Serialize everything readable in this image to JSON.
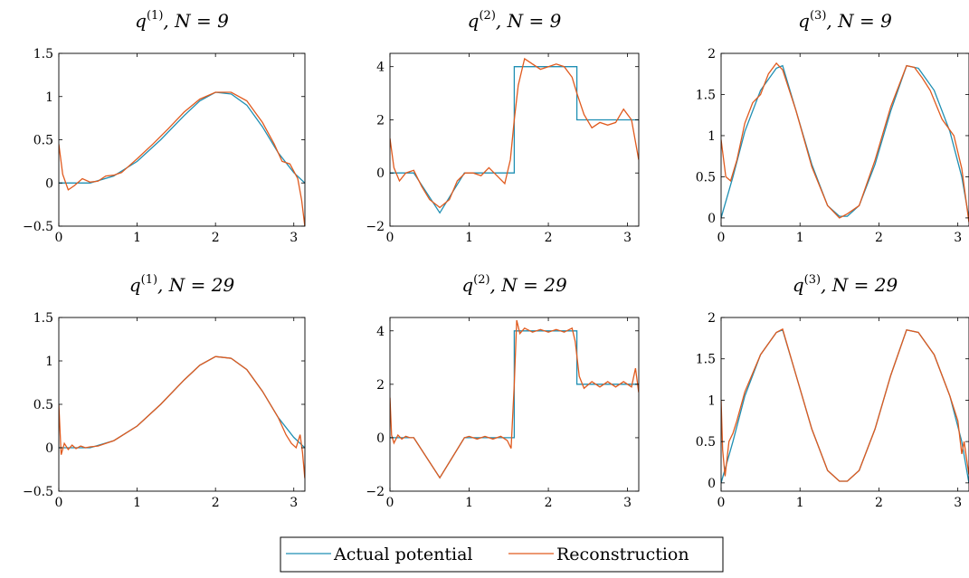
{
  "colors": {
    "actual": "#1f8fb3",
    "reconstruction": "#e05a1e",
    "axis": "#000000"
  },
  "legend": {
    "items": [
      "Actual potential",
      "Reconstruction"
    ]
  },
  "chart_data": [
    {
      "type": "line",
      "title_base": "q",
      "title_sup": "(1)",
      "title_n": "N = 9",
      "xlim": [
        0,
        3.1416
      ],
      "ylim": [
        -0.5,
        1.5
      ],
      "xticks": [
        "0",
        "1",
        "2",
        "3"
      ],
      "yticks": [
        "−0.5",
        "0",
        "0.5",
        "1",
        "1.5"
      ],
      "series": [
        {
          "name": "Actual potential",
          "x": [
            0,
            0.4,
            0.7,
            1.0,
            1.3,
            1.6,
            1.8,
            2.0,
            2.2,
            2.4,
            2.6,
            2.8,
            3.0,
            3.14
          ],
          "y": [
            0,
            0,
            0.08,
            0.25,
            0.5,
            0.78,
            0.95,
            1.05,
            1.03,
            0.9,
            0.65,
            0.35,
            0.12,
            0
          ]
        },
        {
          "name": "Reconstruction",
          "x": [
            0,
            0.05,
            0.12,
            0.2,
            0.3,
            0.4,
            0.5,
            0.6,
            0.7,
            0.8,
            0.9,
            1.0,
            1.2,
            1.4,
            1.6,
            1.8,
            2.0,
            2.2,
            2.4,
            2.6,
            2.75,
            2.85,
            2.95,
            3.05,
            3.1,
            3.14
          ],
          "y": [
            0.45,
            0.1,
            -0.08,
            -0.03,
            0.05,
            0.01,
            0.02,
            0.08,
            0.09,
            0.12,
            0.2,
            0.28,
            0.45,
            0.63,
            0.82,
            0.97,
            1.05,
            1.05,
            0.95,
            0.7,
            0.45,
            0.25,
            0.22,
            0.05,
            -0.2,
            -0.5
          ]
        }
      ]
    },
    {
      "type": "line",
      "title_base": "q",
      "title_sup": "(2)",
      "title_n": "N = 9",
      "xlim": [
        0,
        3.1416
      ],
      "ylim": [
        -2,
        4.5
      ],
      "xticks": [
        "0",
        "1",
        "2",
        "3"
      ],
      "yticks": [
        "−2",
        "0",
        "2",
        "4"
      ],
      "series": [
        {
          "name": "Actual potential",
          "x": [
            0,
            0.3,
            0.63,
            0.94,
            1.57,
            1.57,
            2.36,
            2.36,
            3.14
          ],
          "y": [
            0,
            0,
            -1.5,
            0,
            0,
            4,
            4,
            2,
            2
          ]
        },
        {
          "name": "Reconstruction",
          "x": [
            0,
            0.05,
            0.12,
            0.2,
            0.3,
            0.4,
            0.5,
            0.63,
            0.75,
            0.85,
            0.95,
            1.05,
            1.15,
            1.25,
            1.35,
            1.45,
            1.52,
            1.57,
            1.62,
            1.7,
            1.8,
            1.9,
            2.0,
            2.1,
            2.2,
            2.3,
            2.36,
            2.45,
            2.55,
            2.65,
            2.75,
            2.85,
            2.95,
            3.05,
            3.14
          ],
          "y": [
            1.3,
            0.2,
            -0.3,
            0.0,
            0.1,
            -0.5,
            -1.0,
            -1.3,
            -1.0,
            -0.3,
            0.0,
            0.0,
            -0.1,
            0.2,
            -0.1,
            -0.4,
            0.5,
            2.0,
            3.3,
            4.3,
            4.1,
            3.9,
            4.0,
            4.1,
            4.0,
            3.6,
            3.0,
            2.2,
            1.7,
            1.9,
            1.8,
            1.9,
            2.4,
            2.0,
            0.5
          ]
        }
      ]
    },
    {
      "type": "line",
      "title_base": "q",
      "title_sup": "(3)",
      "title_n": "N = 9",
      "xlim": [
        0,
        3.1416
      ],
      "ylim": [
        -0.1,
        2.0
      ],
      "xticks": [
        "0",
        "1",
        "2",
        "3"
      ],
      "yticks": [
        "0",
        "0.5",
        "1",
        "1.5",
        "2"
      ],
      "series": [
        {
          "name": "Actual potential",
          "x": [
            0,
            0.15,
            0.3,
            0.5,
            0.7,
            0.78,
            0.95,
            1.15,
            1.35,
            1.5,
            1.6,
            1.75,
            1.95,
            2.15,
            2.35,
            2.5,
            2.7,
            2.9,
            3.05,
            3.14
          ],
          "y": [
            0,
            0.5,
            1.05,
            1.55,
            1.82,
            1.85,
            1.3,
            0.65,
            0.15,
            0.02,
            0.02,
            0.15,
            0.65,
            1.3,
            1.85,
            1.82,
            1.55,
            1.05,
            0.5,
            0
          ]
        },
        {
          "name": "Reconstruction",
          "x": [
            0,
            0.06,
            0.12,
            0.2,
            0.3,
            0.4,
            0.5,
            0.6,
            0.7,
            0.78,
            0.95,
            1.15,
            1.35,
            1.5,
            1.6,
            1.75,
            1.95,
            2.15,
            2.35,
            2.45,
            2.55,
            2.65,
            2.8,
            2.95,
            3.05,
            3.14
          ],
          "y": [
            0.95,
            0.5,
            0.45,
            0.7,
            1.15,
            1.4,
            1.5,
            1.75,
            1.88,
            1.8,
            1.3,
            0.62,
            0.15,
            0.0,
            0.05,
            0.15,
            0.7,
            1.35,
            1.85,
            1.83,
            1.7,
            1.55,
            1.2,
            1.0,
            0.6,
            -0.05
          ]
        }
      ]
    },
    {
      "type": "line",
      "title_base": "q",
      "title_sup": "(1)",
      "title_n": "N = 29",
      "xlim": [
        0,
        3.1416
      ],
      "ylim": [
        -0.5,
        1.5
      ],
      "xticks": [
        "0",
        "1",
        "2",
        "3"
      ],
      "yticks": [
        "−0.5",
        "0",
        "0.5",
        "1",
        "1.5"
      ],
      "series": [
        {
          "name": "Actual potential",
          "x": [
            0,
            0.4,
            0.7,
            1.0,
            1.3,
            1.6,
            1.8,
            2.0,
            2.2,
            2.4,
            2.6,
            2.8,
            3.0,
            3.14
          ],
          "y": [
            0,
            0,
            0.08,
            0.25,
            0.5,
            0.78,
            0.95,
            1.05,
            1.03,
            0.9,
            0.65,
            0.35,
            0.12,
            0
          ]
        },
        {
          "name": "Reconstruction",
          "x": [
            0,
            0.03,
            0.07,
            0.12,
            0.17,
            0.22,
            0.28,
            0.34,
            0.4,
            0.5,
            0.7,
            1.0,
            1.3,
            1.6,
            1.8,
            2.0,
            2.2,
            2.4,
            2.6,
            2.8,
            2.9,
            2.97,
            3.03,
            3.08,
            3.11,
            3.14
          ],
          "y": [
            0.5,
            -0.08,
            0.05,
            -0.02,
            0.03,
            -0.01,
            0.02,
            0.0,
            0.01,
            0.02,
            0.08,
            0.25,
            0.5,
            0.78,
            0.95,
            1.05,
            1.03,
            0.9,
            0.65,
            0.35,
            0.15,
            0.05,
            0.0,
            0.15,
            -0.05,
            -0.35
          ]
        }
      ]
    },
    {
      "type": "line",
      "title_base": "q",
      "title_sup": "(2)",
      "title_n": "N = 29",
      "xlim": [
        0,
        3.1416
      ],
      "ylim": [
        -2,
        4.5
      ],
      "xticks": [
        "0",
        "1",
        "2",
        "3"
      ],
      "yticks": [
        "−2",
        "0",
        "2",
        "4"
      ],
      "series": [
        {
          "name": "Actual potential",
          "x": [
            0,
            0.3,
            0.63,
            0.94,
            1.57,
            1.57,
            2.36,
            2.36,
            3.14
          ],
          "y": [
            0,
            0,
            -1.5,
            0,
            0,
            4,
            4,
            2,
            2
          ]
        },
        {
          "name": "Reconstruction",
          "x": [
            0,
            0.02,
            0.05,
            0.1,
            0.15,
            0.2,
            0.25,
            0.3,
            0.63,
            0.94,
            1.0,
            1.1,
            1.2,
            1.3,
            1.4,
            1.48,
            1.53,
            1.57,
            1.6,
            1.64,
            1.7,
            1.8,
            1.9,
            2.0,
            2.1,
            2.2,
            2.3,
            2.34,
            2.39,
            2.45,
            2.55,
            2.65,
            2.75,
            2.85,
            2.95,
            3.05,
            3.1,
            3.14
          ],
          "y": [
            1.5,
            0.1,
            -0.2,
            0.1,
            -0.05,
            0.05,
            0.0,
            0.0,
            -1.5,
            0.0,
            0.05,
            -0.05,
            0.05,
            -0.05,
            0.05,
            -0.1,
            -0.4,
            2.0,
            4.4,
            3.9,
            4.1,
            3.95,
            4.05,
            3.95,
            4.05,
            3.95,
            4.1,
            3.6,
            2.3,
            1.85,
            2.1,
            1.9,
            2.1,
            1.9,
            2.1,
            1.9,
            2.6,
            1.7
          ]
        }
      ]
    },
    {
      "type": "line",
      "title_base": "q",
      "title_sup": "(3)",
      "title_n": "N = 29",
      "xlim": [
        0,
        3.1416
      ],
      "ylim": [
        -0.1,
        2.0
      ],
      "xticks": [
        "0",
        "1",
        "2",
        "3"
      ],
      "yticks": [
        "0",
        "0.5",
        "1",
        "1.5",
        "2"
      ],
      "series": [
        {
          "name": "Actual potential",
          "x": [
            0,
            0.15,
            0.3,
            0.5,
            0.7,
            0.78,
            0.95,
            1.15,
            1.35,
            1.5,
            1.6,
            1.75,
            1.95,
            2.15,
            2.35,
            2.5,
            2.7,
            2.9,
            3.05,
            3.14
          ],
          "y": [
            0,
            0.5,
            1.05,
            1.55,
            1.82,
            1.85,
            1.3,
            0.65,
            0.15,
            0.02,
            0.02,
            0.15,
            0.65,
            1.3,
            1.85,
            1.82,
            1.55,
            1.05,
            0.5,
            0
          ]
        },
        {
          "name": "Reconstruction",
          "x": [
            0,
            0.02,
            0.05,
            0.1,
            0.15,
            0.2,
            0.3,
            0.5,
            0.7,
            0.78,
            0.95,
            1.15,
            1.35,
            1.5,
            1.6,
            1.75,
            1.95,
            2.15,
            2.35,
            2.5,
            2.7,
            2.9,
            3.0,
            3.05,
            3.08,
            3.11,
            3.14
          ],
          "y": [
            1.0,
            0.4,
            0.08,
            0.5,
            0.6,
            0.75,
            1.1,
            1.55,
            1.82,
            1.86,
            1.3,
            0.65,
            0.15,
            0.02,
            0.02,
            0.15,
            0.65,
            1.3,
            1.85,
            1.82,
            1.55,
            1.05,
            0.75,
            0.35,
            0.5,
            0.3,
            0.1
          ]
        }
      ]
    }
  ]
}
